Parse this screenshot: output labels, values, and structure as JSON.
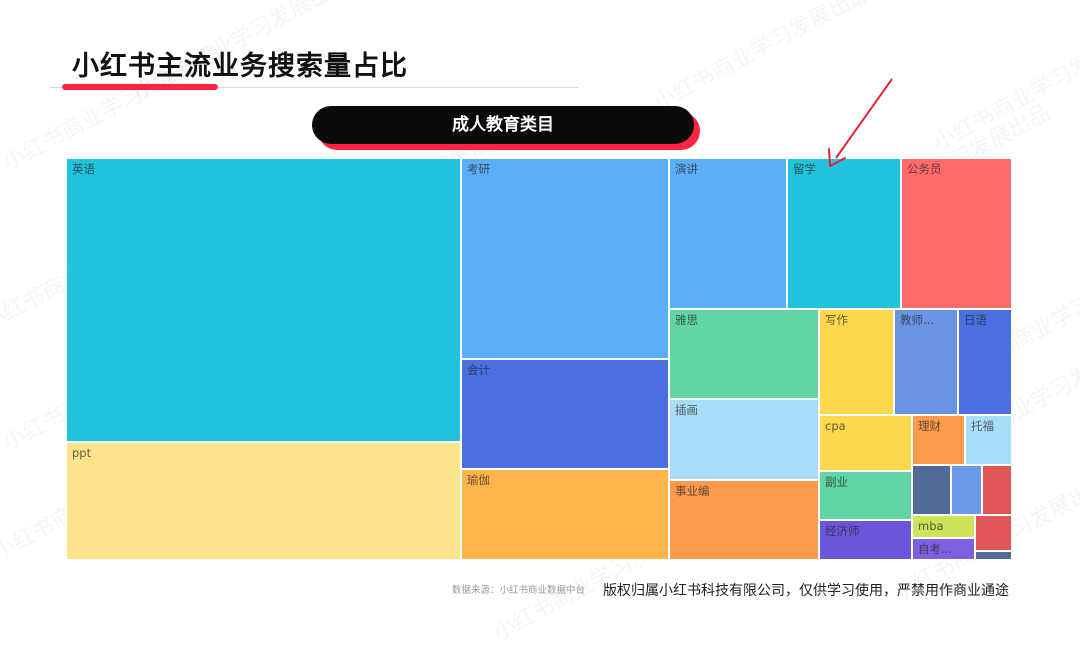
{
  "page": {
    "title": "小红书主流业务搜索量占比",
    "subtitle": "成人教育类目"
  },
  "watermark": {
    "text": "小红书商业学习发展出品"
  },
  "footer": {
    "source": "数据来源：小红书商业数据中台",
    "copyright": "版权归属小红书科技有限公司，仅供学习使用，严禁用作商业通途"
  },
  "annotation": {
    "type": "arrow",
    "target": "留学",
    "color": "#e5213a"
  },
  "chart_data": {
    "type": "treemap",
    "title": "成人教育类目",
    "items": [
      {
        "label": "英语",
        "value": 31.55,
        "color": "#23c2dc"
      },
      {
        "label": "ppt",
        "value": 9.19,
        "color": "#fde48c"
      },
      {
        "label": "考研",
        "value": 10.52,
        "color": "#5aaef5"
      },
      {
        "label": "会计",
        "value": 5.78,
        "color": "#4a6fe0"
      },
      {
        "label": "瑜伽",
        "value": 4.73,
        "color": "#fdb54c"
      },
      {
        "label": "演讲",
        "value": 4.59,
        "color": "#5aaef5"
      },
      {
        "label": "留学",
        "value": 4.46,
        "color": "#23c2dc"
      },
      {
        "label": "公务员",
        "value": 4.13,
        "color": "#ff6b6b"
      },
      {
        "label": "雅思",
        "value": 3.13,
        "color": "#5fd6a3"
      },
      {
        "label": "插画",
        "value": 2.7,
        "color": "#a8ddf7"
      },
      {
        "label": "事业编",
        "value": 2.73,
        "color": "#fe9a4c"
      },
      {
        "label": "写作",
        "value": 1.98,
        "color": "#fed84c"
      },
      {
        "label": "教师...",
        "value": 1.61,
        "color": "#6b93e3"
      },
      {
        "label": "日语",
        "value": 1.34,
        "color": "#4a6fe0"
      },
      {
        "label": "cpa",
        "value": 1.47,
        "color": "#fed84c"
      },
      {
        "label": "理财",
        "value": 0.76,
        "color": "#fe9a4c"
      },
      {
        "label": "托福",
        "value": 0.76,
        "color": "#a8ddf7"
      },
      {
        "label": "副业",
        "value": 1.25,
        "color": "#5fd6a3"
      },
      {
        "label": "经济师",
        "value": 1.0,
        "color": "#6a56d8"
      },
      {
        "label": "",
        "value": 0.56,
        "color": "#546a96"
      },
      {
        "label": "",
        "value": 0.38,
        "color": "#6b9ae9"
      },
      {
        "label": "",
        "value": 0.38,
        "color": "#e05656"
      },
      {
        "label": "mba",
        "value": 0.3,
        "color": "#cce35a"
      },
      {
        "label": "自考...",
        "value": 0.3,
        "color": "#7d61e3"
      },
      {
        "label": "",
        "value": 0.35,
        "color": "#e05656"
      },
      {
        "label": "",
        "value": 0.07,
        "color": "#546a96"
      }
    ]
  }
}
